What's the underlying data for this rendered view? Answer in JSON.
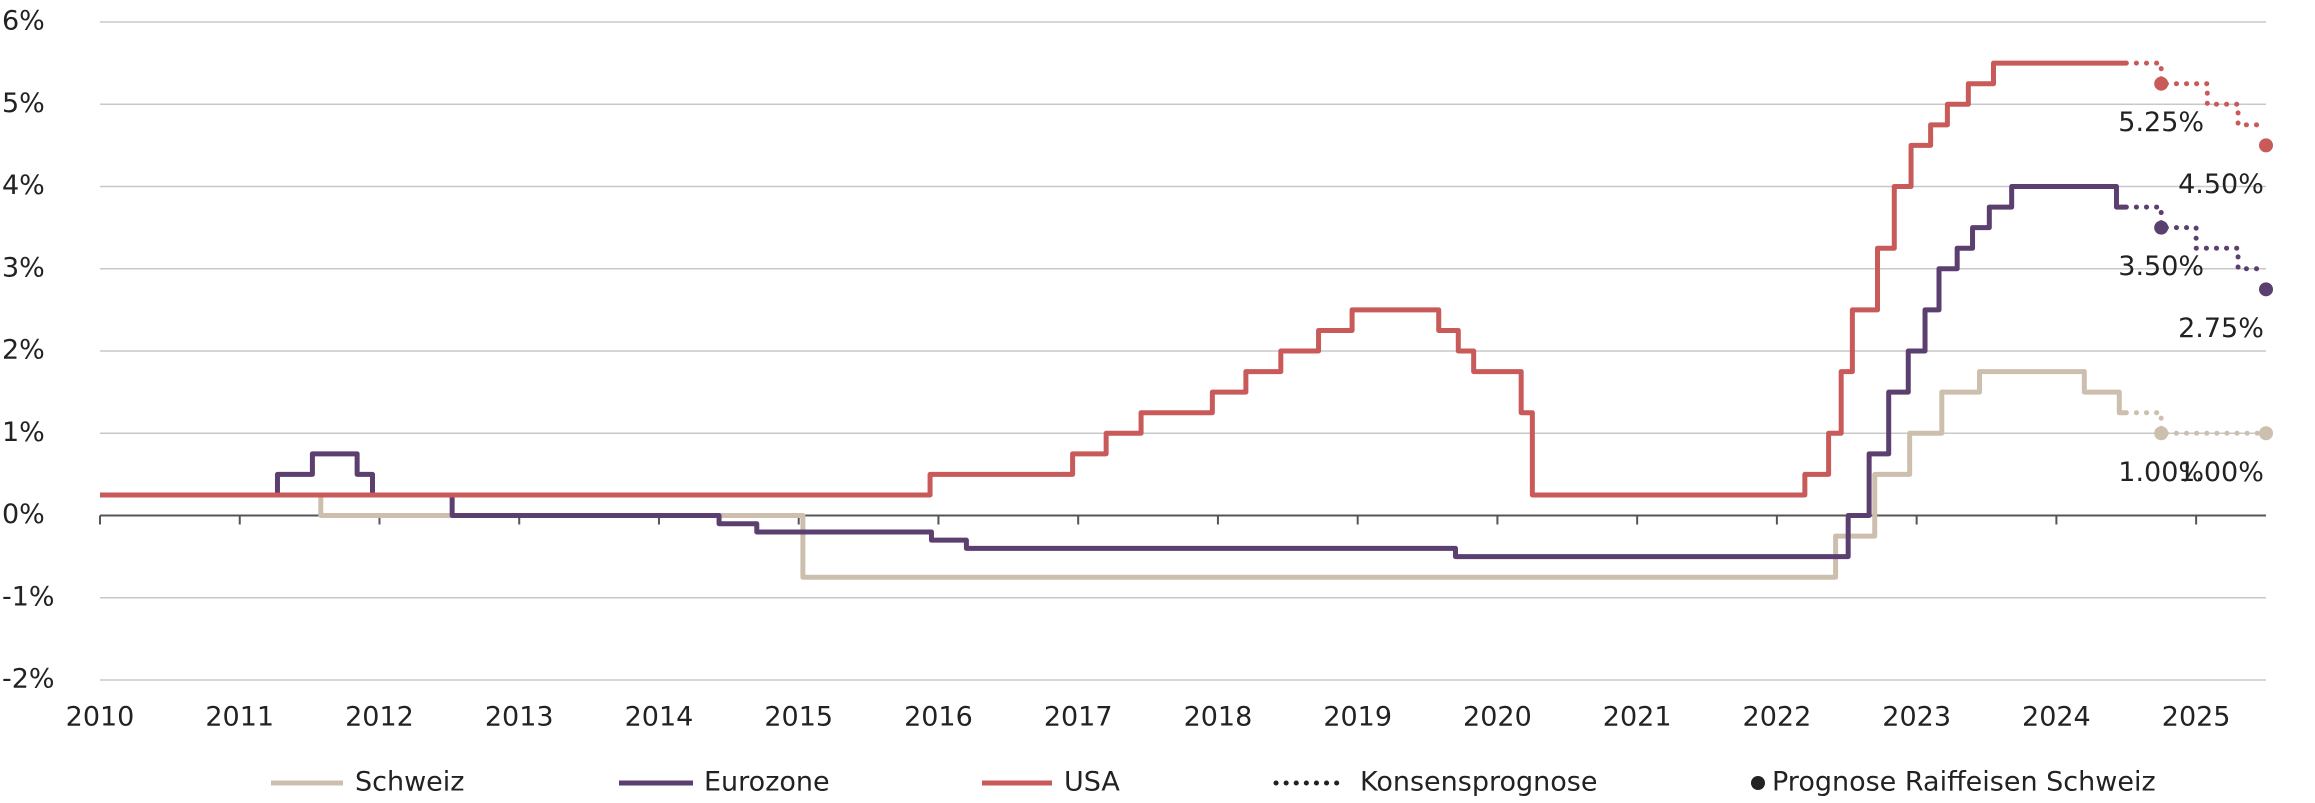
{
  "chart_data": {
    "type": "line",
    "step": true,
    "xlim": [
      2010,
      2025.5
    ],
    "xticks": [
      2010,
      2011,
      2012,
      2013,
      2014,
      2015,
      2016,
      2017,
      2018,
      2019,
      2020,
      2021,
      2022,
      2023,
      2024,
      2025
    ],
    "ylim": [
      -2,
      6
    ],
    "yticks": [
      {
        "value": -2,
        "label": "-2%"
      },
      {
        "value": -1,
        "label": "-1%"
      },
      {
        "value": 0,
        "label": "0%"
      },
      {
        "value": 1,
        "label": "1%"
      },
      {
        "value": 2,
        "label": "2%"
      },
      {
        "value": 3,
        "label": "3%"
      },
      {
        "value": 4,
        "label": "4%"
      },
      {
        "value": 5,
        "label": "5%"
      },
      {
        "value": 6,
        "label": "6%"
      }
    ],
    "grid": true,
    "consensus_name": "Konsensprognose",
    "forecast_name": "Prognose Raiffeisen Schweiz",
    "series": [
      {
        "name": "Schweiz",
        "color": "#cdbfae",
        "x": [
          2010,
          2011.58,
          2015.03,
          2022.42,
          2022.7,
          2022.95,
          2023.18,
          2023.45,
          2024.2,
          2024.45,
          2024.5
        ],
        "values": [
          0.25,
          0,
          -0.75,
          -0.25,
          0.5,
          1,
          1.5,
          1.75,
          1.5,
          1.25,
          1.25
        ],
        "consensus": {
          "x": [
            2024.5,
            2024.75,
            2025.5
          ],
          "values": [
            1.25,
            1,
            1
          ]
        },
        "forecast": {
          "x": [
            2024.75,
            2025.5
          ],
          "values": [
            1,
            1
          ],
          "value_labels": [
            "1.00%",
            "1.00%"
          ]
        }
      },
      {
        "name": "Eurozone",
        "color": "#5b3f6e",
        "x": [
          2010,
          2011.27,
          2011.52,
          2011.84,
          2011.95,
          2012.52,
          2014.43,
          2014.7,
          2015.95,
          2016.2,
          2019.7,
          2022.51,
          2022.66,
          2022.8,
          2022.94,
          2023.06,
          2023.16,
          2023.29,
          2023.4,
          2023.52,
          2023.68,
          2024.43,
          2024.5
        ],
        "values": [
          0.25,
          0.5,
          0.75,
          0.5,
          0.25,
          0,
          -0.1,
          -0.2,
          -0.3,
          -0.4,
          -0.5,
          0,
          0.75,
          1.5,
          2,
          2.5,
          3,
          3.25,
          3.5,
          3.75,
          4,
          3.75,
          3.75
        ],
        "consensus": {
          "x": [
            2024.5,
            2024.75,
            2025.0,
            2025.3,
            2025.5
          ],
          "values": [
            3.75,
            3.5,
            3.25,
            3,
            3
          ]
        },
        "forecast": {
          "x": [
            2024.75,
            2025.5
          ],
          "values": [
            3.5,
            2.75
          ],
          "value_labels": [
            "3.50%",
            "2.75%"
          ]
        }
      },
      {
        "name": "USA",
        "color": "#c85a5a",
        "x": [
          2010,
          2015.94,
          2016.96,
          2017.2,
          2017.45,
          2017.96,
          2018.2,
          2018.45,
          2018.72,
          2018.96,
          2019.58,
          2019.72,
          2019.83,
          2020.17,
          2020.25,
          2022.2,
          2022.37,
          2022.46,
          2022.54,
          2022.72,
          2022.84,
          2022.96,
          2023.1,
          2023.22,
          2023.37,
          2023.55,
          2024.5
        ],
        "values": [
          0.25,
          0.5,
          0.75,
          1,
          1.25,
          1.5,
          1.75,
          2,
          2.25,
          2.5,
          2.25,
          2,
          1.75,
          1.25,
          0.25,
          0.5,
          1,
          1.75,
          2.5,
          3.25,
          4,
          4.5,
          4.75,
          5,
          5.25,
          5.5,
          5.5
        ],
        "consensus": {
          "x": [
            2024.5,
            2024.75,
            2025.08,
            2025.3,
            2025.5
          ],
          "values": [
            5.5,
            5.25,
            5,
            4.75,
            4.75
          ]
        },
        "forecast": {
          "x": [
            2024.75,
            2025.5
          ],
          "values": [
            5.25,
            4.5
          ],
          "value_labels": [
            "5.25%",
            "4.50%"
          ]
        }
      }
    ]
  }
}
